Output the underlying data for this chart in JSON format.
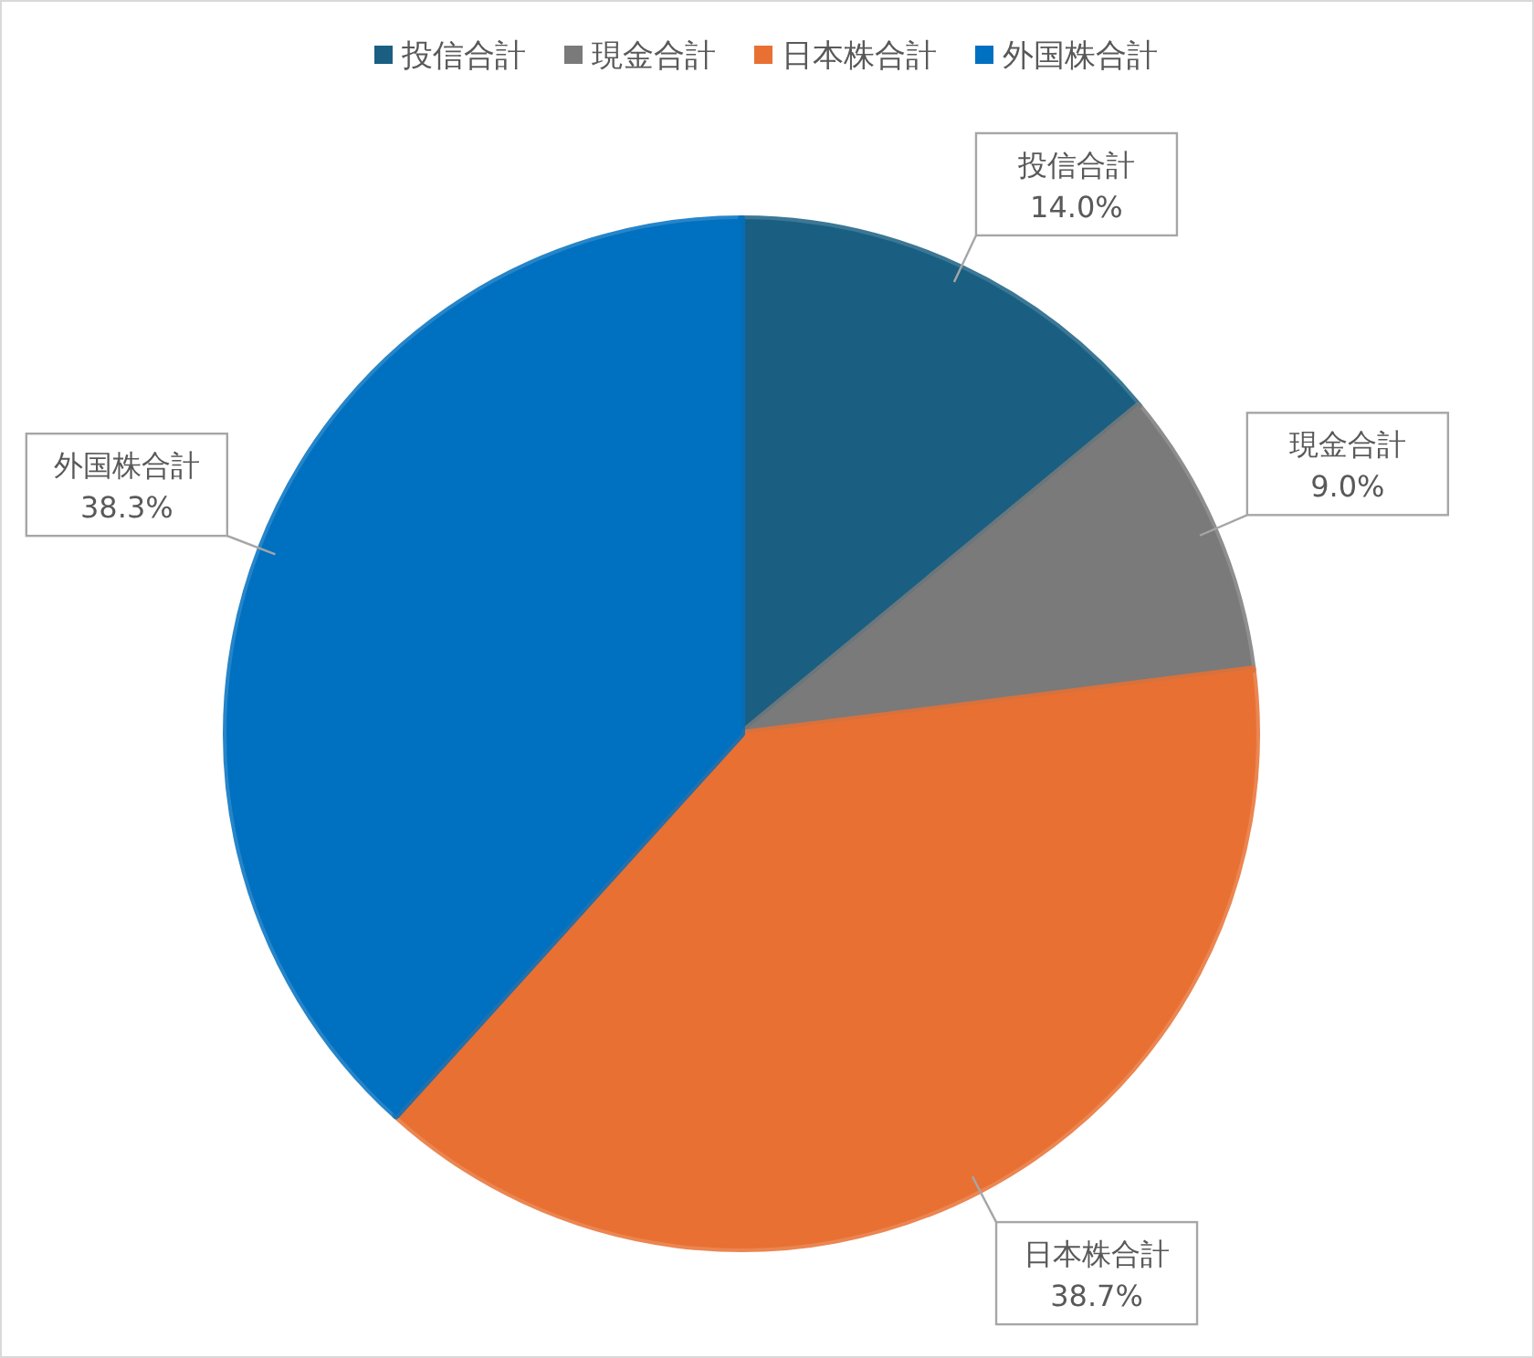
{
  "chart_data": {
    "type": "pie",
    "categories": [
      "投信合計",
      "現金合計",
      "日本株合計",
      "外国株合計"
    ],
    "values": [
      14.0,
      9.0,
      38.7,
      38.3
    ],
    "colors": [
      "#1a5f82",
      "#7a7a7a",
      "#e87033",
      "#0070c0"
    ],
    "value_labels": [
      "14.0%",
      "9.0%",
      "38.7%",
      "38.3%"
    ],
    "legend": "top"
  }
}
